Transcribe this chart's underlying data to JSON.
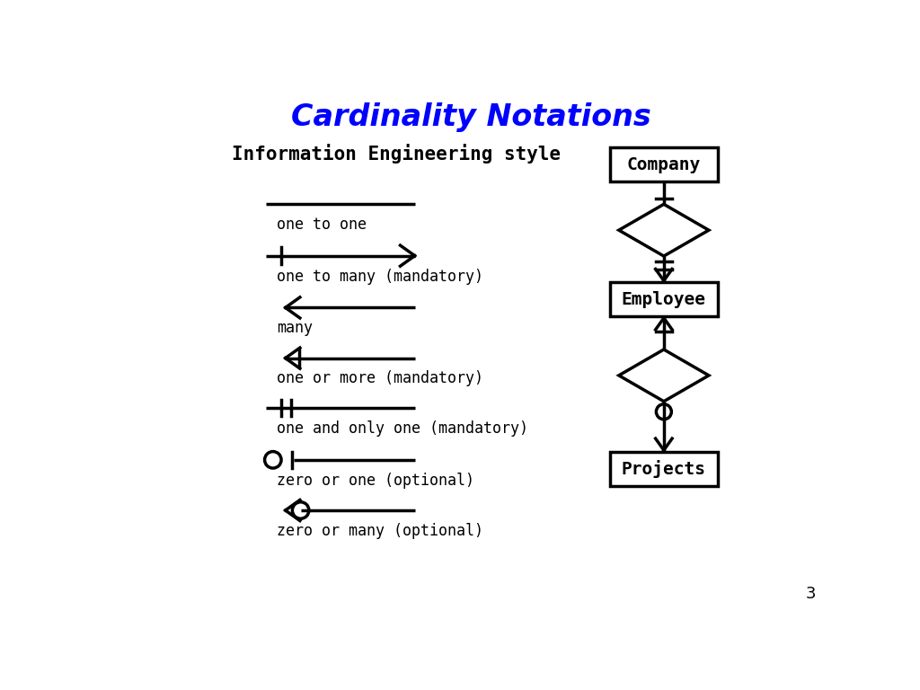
{
  "title": "Cardinality Notations",
  "title_color": "#0000FF",
  "title_fontsize": 24,
  "subtitle": "Information Engineering style",
  "subtitle_fontsize": 15,
  "background_color": "#FFFFFF",
  "text_color": "#000000",
  "notation_labels": [
    "one to one",
    "one to many (mandatory)",
    "many",
    "one or more (mandatory)",
    "one and only one (mandatory)",
    "zero or one (optional)",
    "zero or many (optional)"
  ],
  "erd_entities": [
    "Company",
    "Employee",
    "Projects"
  ],
  "page_number": "3",
  "line_lw": 2.5,
  "erd_lw": 2.5,
  "label_fontsize": 12
}
